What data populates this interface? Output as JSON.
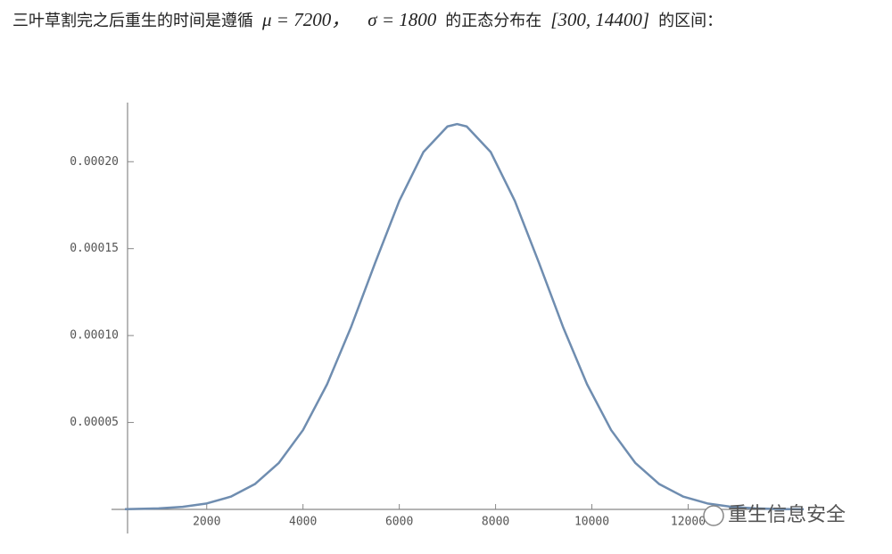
{
  "paragraph": [
    "三叶草割完之后重生的时间是遵循",
    "μ = 7200，",
    "σ = 1800",
    "的正态分布在",
    "[300, 14400]",
    "的区间："
  ],
  "chart_data": {
    "type": "line",
    "x": [
      300,
      1000,
      1500,
      2000,
      2500,
      3000,
      3500,
      4000,
      4500,
      5000,
      5500,
      6000,
      6500,
      7000,
      7200,
      7400,
      7900,
      8400,
      8900,
      9400,
      9900,
      10400,
      10900,
      11400,
      11900,
      12400,
      12900,
      13400,
      13900,
      14400
    ],
    "series": [
      {
        "color": "#6f8db0",
        "values": [
          1.43e-07,
          5.88e-07,
          1.473e-06,
          3.415e-06,
          7.33e-06,
          1.456e-05,
          2.679e-05,
          4.564e-05,
          7.197e-05,
          0.00010501,
          0.0001419,
          0.00017747,
          0.00020551,
          0.00022028,
          0.00022164,
          0.00022028,
          0.00020551,
          0.00017747,
          0.0001419,
          0.00010501,
          7.197e-05,
          4.564e-05,
          2.679e-05,
          1.456e-05,
          7.33e-06,
          3.415e-06,
          1.473e-06,
          5.88e-07,
          2.18e-07,
          7.4e-08
        ]
      }
    ],
    "xlim": [
      300,
      14400
    ],
    "ylim": [
      0,
      0.000234
    ],
    "xticks": [
      2000,
      4000,
      6000,
      8000,
      10000,
      12000
    ],
    "yticks": [
      5e-05,
      {
        "value": 0.0001,
        "label": "0.00010"
      },
      0.00015,
      {
        "value": 0.0002,
        "label": "0.00020"
      }
    ]
  },
  "watermark": "重生信息安全"
}
